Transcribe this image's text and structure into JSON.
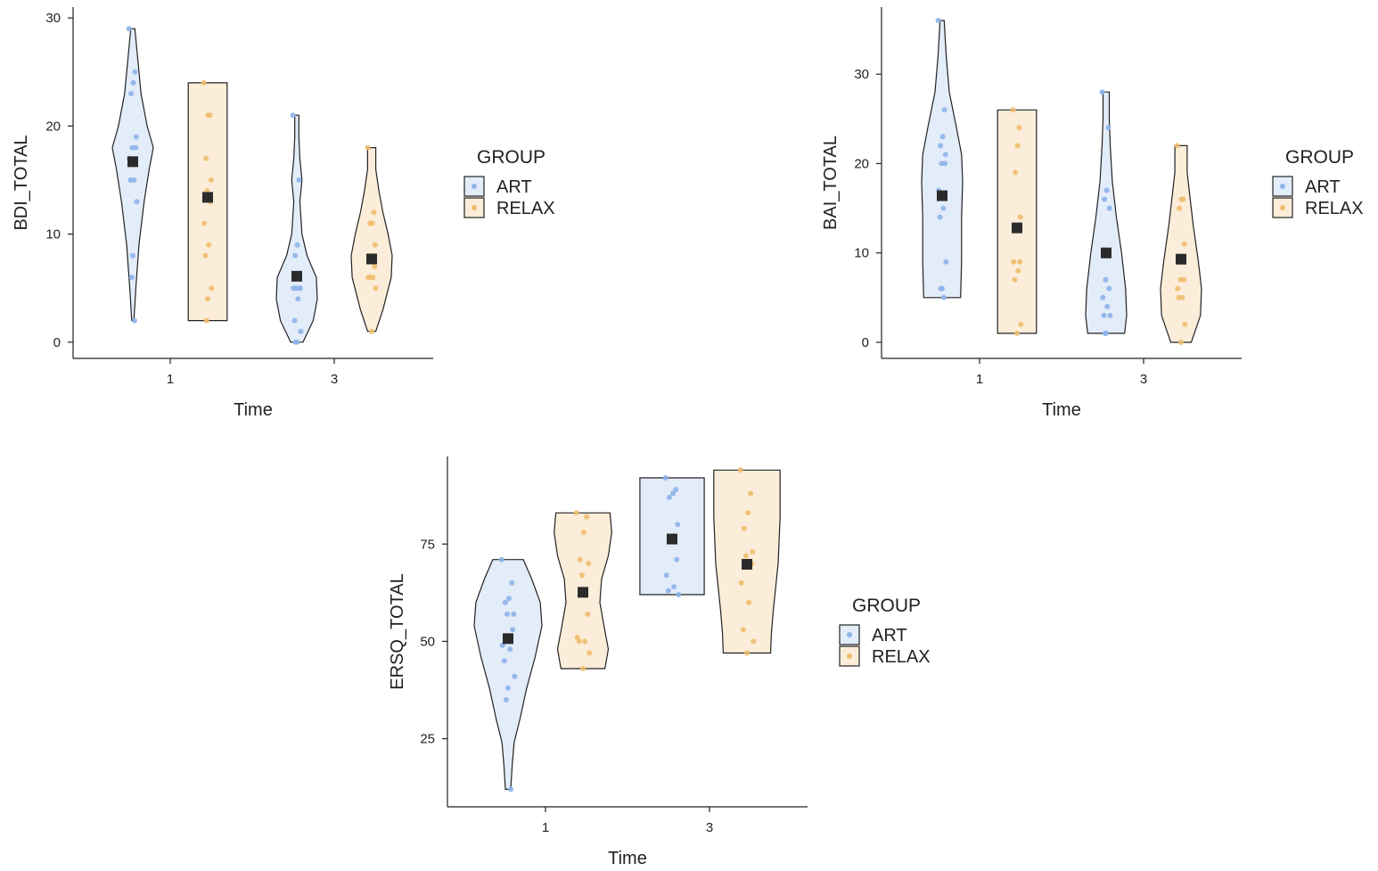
{
  "colors": {
    "ART": "#8db4ea",
    "RELAX": "#eebd6e",
    "ART_fill": "#e3ecf9",
    "RELAX_fill": "#fbedd9",
    "mean": "#2b2b2b"
  },
  "chart_data": [
    {
      "type": "violin",
      "xlabel": "Time",
      "ylabel": "BDI_TOTAL",
      "x_ticks": [
        "1",
        "3"
      ],
      "y_ticks": [
        0,
        10,
        20,
        30
      ],
      "ylim": [
        -1.5,
        31
      ],
      "legend": {
        "title": "GROUP",
        "entries": [
          "ART",
          "RELAX"
        ],
        "placement": "right"
      },
      "series": [
        {
          "name": "ART",
          "time": "1",
          "mean": 16.7,
          "range": [
            2,
            29
          ],
          "points": [
            29,
            25,
            24,
            23,
            19,
            18,
            18,
            17,
            15,
            15,
            13,
            8,
            6,
            2
          ],
          "density": [
            [
              2,
              0.05
            ],
            [
              5,
              0.15
            ],
            [
              9,
              0.3
            ],
            [
              13,
              0.55
            ],
            [
              16,
              0.8
            ],
            [
              18,
              1.0
            ],
            [
              20,
              0.7
            ],
            [
              23,
              0.4
            ],
            [
              26,
              0.25
            ],
            [
              29,
              0.1
            ]
          ]
        },
        {
          "name": "RELAX",
          "time": "1",
          "mean": 13.4,
          "range": [
            2,
            24
          ],
          "points": [
            24,
            21,
            21,
            17,
            15,
            14,
            13,
            11,
            9,
            8,
            5,
            4,
            2
          ],
          "density": [
            [
              2,
              0.95
            ],
            [
              8,
              0.95
            ],
            [
              14,
              0.95
            ],
            [
              19,
              0.95
            ],
            [
              24,
              0.95
            ]
          ]
        },
        {
          "name": "ART",
          "time": "3",
          "mean": 6.1,
          "range": [
            0,
            21
          ],
          "points": [
            21,
            15,
            9,
            8,
            5,
            5,
            5,
            5,
            4,
            2,
            1,
            0,
            0
          ],
          "density": [
            [
              0,
              0.3
            ],
            [
              2,
              0.8
            ],
            [
              4,
              1.0
            ],
            [
              6,
              0.95
            ],
            [
              8,
              0.5
            ],
            [
              10,
              0.25
            ],
            [
              13,
              0.15
            ],
            [
              15,
              0.25
            ],
            [
              17,
              0.15
            ],
            [
              19,
              0.1
            ],
            [
              21,
              0.1
            ]
          ]
        },
        {
          "name": "RELAX",
          "time": "3",
          "mean": 7.7,
          "range": [
            1,
            18
          ],
          "points": [
            18,
            12,
            11,
            11,
            9,
            8,
            7,
            6,
            6,
            6,
            5,
            1
          ],
          "density": [
            [
              1,
              0.2
            ],
            [
              3,
              0.55
            ],
            [
              6,
              0.95
            ],
            [
              8,
              1.0
            ],
            [
              10,
              0.8
            ],
            [
              12,
              0.55
            ],
            [
              14,
              0.35
            ],
            [
              16,
              0.2
            ],
            [
              18,
              0.2
            ]
          ]
        }
      ]
    },
    {
      "type": "violin",
      "xlabel": "Time",
      "ylabel": "BAI_TOTAL",
      "x_ticks": [
        "1",
        "3"
      ],
      "y_ticks": [
        0,
        10,
        20,
        30
      ],
      "ylim": [
        -1.8,
        37.5
      ],
      "legend": {
        "title": "GROUP",
        "entries": [
          "ART",
          "RELAX"
        ],
        "placement": "right"
      },
      "series": [
        {
          "name": "ART",
          "time": "1",
          "mean": 16.4,
          "range": [
            5,
            36
          ],
          "points": [
            36,
            26,
            23,
            22,
            21,
            20,
            20,
            17,
            15,
            14,
            9,
            6,
            6,
            5
          ],
          "density": [
            [
              5,
              0.9
            ],
            [
              9,
              0.95
            ],
            [
              14,
              0.95
            ],
            [
              18,
              1.0
            ],
            [
              21,
              0.95
            ],
            [
              24,
              0.7
            ],
            [
              28,
              0.35
            ],
            [
              32,
              0.2
            ],
            [
              36,
              0.1
            ]
          ]
        },
        {
          "name": "RELAX",
          "time": "1",
          "mean": 12.8,
          "range": [
            1,
            26
          ],
          "points": [
            26,
            24,
            22,
            19,
            14,
            13,
            9,
            9,
            8,
            7,
            2,
            1
          ],
          "density": [
            [
              1,
              0.95
            ],
            [
              6,
              0.95
            ],
            [
              12,
              0.95
            ],
            [
              18,
              0.95
            ],
            [
              22,
              0.95
            ],
            [
              26,
              0.95
            ]
          ]
        },
        {
          "name": "ART",
          "time": "3",
          "mean": 10.0,
          "range": [
            1,
            28
          ],
          "points": [
            28,
            24,
            17,
            16,
            15,
            7,
            6,
            5,
            4,
            3,
            3,
            1,
            1
          ],
          "density": [
            [
              1,
              0.9
            ],
            [
              3,
              1.0
            ],
            [
              6,
              0.95
            ],
            [
              10,
              0.75
            ],
            [
              14,
              0.5
            ],
            [
              18,
              0.3
            ],
            [
              22,
              0.2
            ],
            [
              25,
              0.15
            ],
            [
              28,
              0.15
            ]
          ]
        },
        {
          "name": "RELAX",
          "time": "3",
          "mean": 9.3,
          "range": [
            0,
            22
          ],
          "points": [
            22,
            16,
            16,
            15,
            11,
            7,
            7,
            6,
            5,
            5,
            2,
            0
          ],
          "density": [
            [
              0,
              0.5
            ],
            [
              3,
              0.95
            ],
            [
              6,
              1.0
            ],
            [
              9,
              0.85
            ],
            [
              13,
              0.6
            ],
            [
              16,
              0.45
            ],
            [
              19,
              0.3
            ],
            [
              22,
              0.3
            ]
          ]
        }
      ]
    },
    {
      "type": "violin",
      "xlabel": "Time",
      "ylabel": "ERSQ_TOTAL",
      "x_ticks": [
        "1",
        "3"
      ],
      "y_ticks": [
        25,
        50,
        75
      ],
      "ylim": [
        7.5,
        97.5
      ],
      "legend": {
        "title": "GROUP",
        "entries": [
          "ART",
          "RELAX"
        ],
        "placement": "right"
      },
      "series": [
        {
          "name": "ART",
          "time": "1",
          "mean": 50.7,
          "range": [
            12,
            71
          ],
          "points": [
            71,
            65,
            61,
            60,
            57,
            57,
            53,
            49,
            48,
            45,
            41,
            38,
            35,
            12
          ],
          "density": [
            [
              12,
              0.08
            ],
            [
              18,
              0.12
            ],
            [
              24,
              0.18
            ],
            [
              30,
              0.35
            ],
            [
              38,
              0.55
            ],
            [
              46,
              0.8
            ],
            [
              54,
              1.0
            ],
            [
              60,
              0.95
            ],
            [
              66,
              0.7
            ],
            [
              71,
              0.45
            ]
          ]
        },
        {
          "name": "RELAX",
          "time": "1",
          "mean": 62.6,
          "range": [
            43,
            83
          ],
          "points": [
            83,
            82,
            78,
            71,
            70,
            67,
            57,
            51,
            50,
            50,
            47,
            43
          ],
          "density": [
            [
              43,
              0.65
            ],
            [
              48,
              0.75
            ],
            [
              54,
              0.62
            ],
            [
              60,
              0.5
            ],
            [
              66,
              0.55
            ],
            [
              72,
              0.75
            ],
            [
              78,
              0.85
            ],
            [
              83,
              0.8
            ]
          ]
        },
        {
          "name": "ART",
          "time": "3",
          "mean": 76.3,
          "range": [
            62,
            92
          ],
          "points": [
            92,
            89,
            88,
            87,
            80,
            76,
            71,
            67,
            64,
            63,
            62
          ],
          "density": [
            [
              62,
              0.95
            ],
            [
              68,
              0.95
            ],
            [
              75,
              0.95
            ],
            [
              81,
              0.95
            ],
            [
              87,
              0.95
            ],
            [
              92,
              0.95
            ]
          ]
        },
        {
          "name": "RELAX",
          "time": "3",
          "mean": 69.8,
          "range": [
            47,
            94
          ],
          "points": [
            94,
            88,
            83,
            79,
            73,
            72,
            70,
            65,
            60,
            53,
            50,
            47
          ],
          "density": [
            [
              47,
              0.7
            ],
            [
              52,
              0.72
            ],
            [
              58,
              0.78
            ],
            [
              64,
              0.85
            ],
            [
              70,
              0.92
            ],
            [
              76,
              0.95
            ],
            [
              82,
              0.98
            ],
            [
              88,
              0.98
            ],
            [
              94,
              0.98
            ]
          ]
        }
      ]
    }
  ]
}
